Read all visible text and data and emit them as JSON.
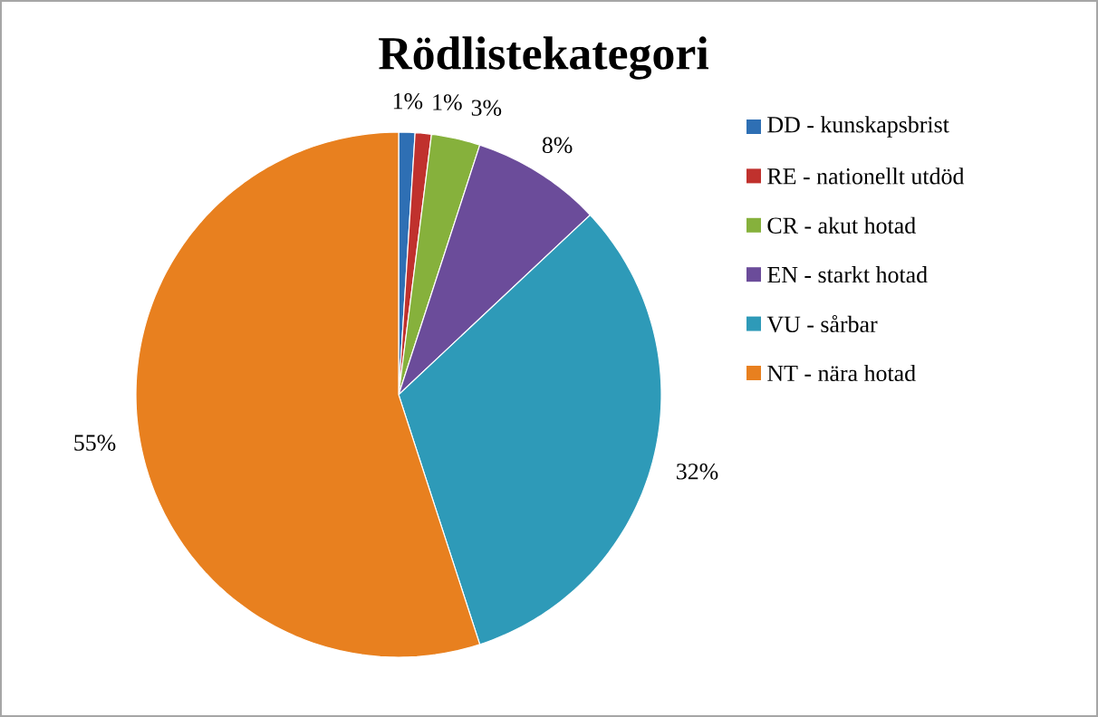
{
  "chart_data": {
    "type": "pie",
    "title": "Rödlistekategori",
    "categories": [
      "DD - kunskapsbrist",
      "RE - nationellt utdöd",
      "CR - akut hotad",
      "EN - starkt hotad",
      "VU - sårbar",
      "NT - nära hotad"
    ],
    "values": [
      1,
      1,
      3,
      8,
      32,
      55
    ],
    "value_labels": [
      "1%",
      "1%",
      "3%",
      "8%",
      "32%",
      "55%"
    ],
    "colors": [
      "#2e6fb4",
      "#c0312d",
      "#86b13c",
      "#6b4c9a",
      "#2e9ab8",
      "#e8801f"
    ],
    "legend": "right"
  }
}
